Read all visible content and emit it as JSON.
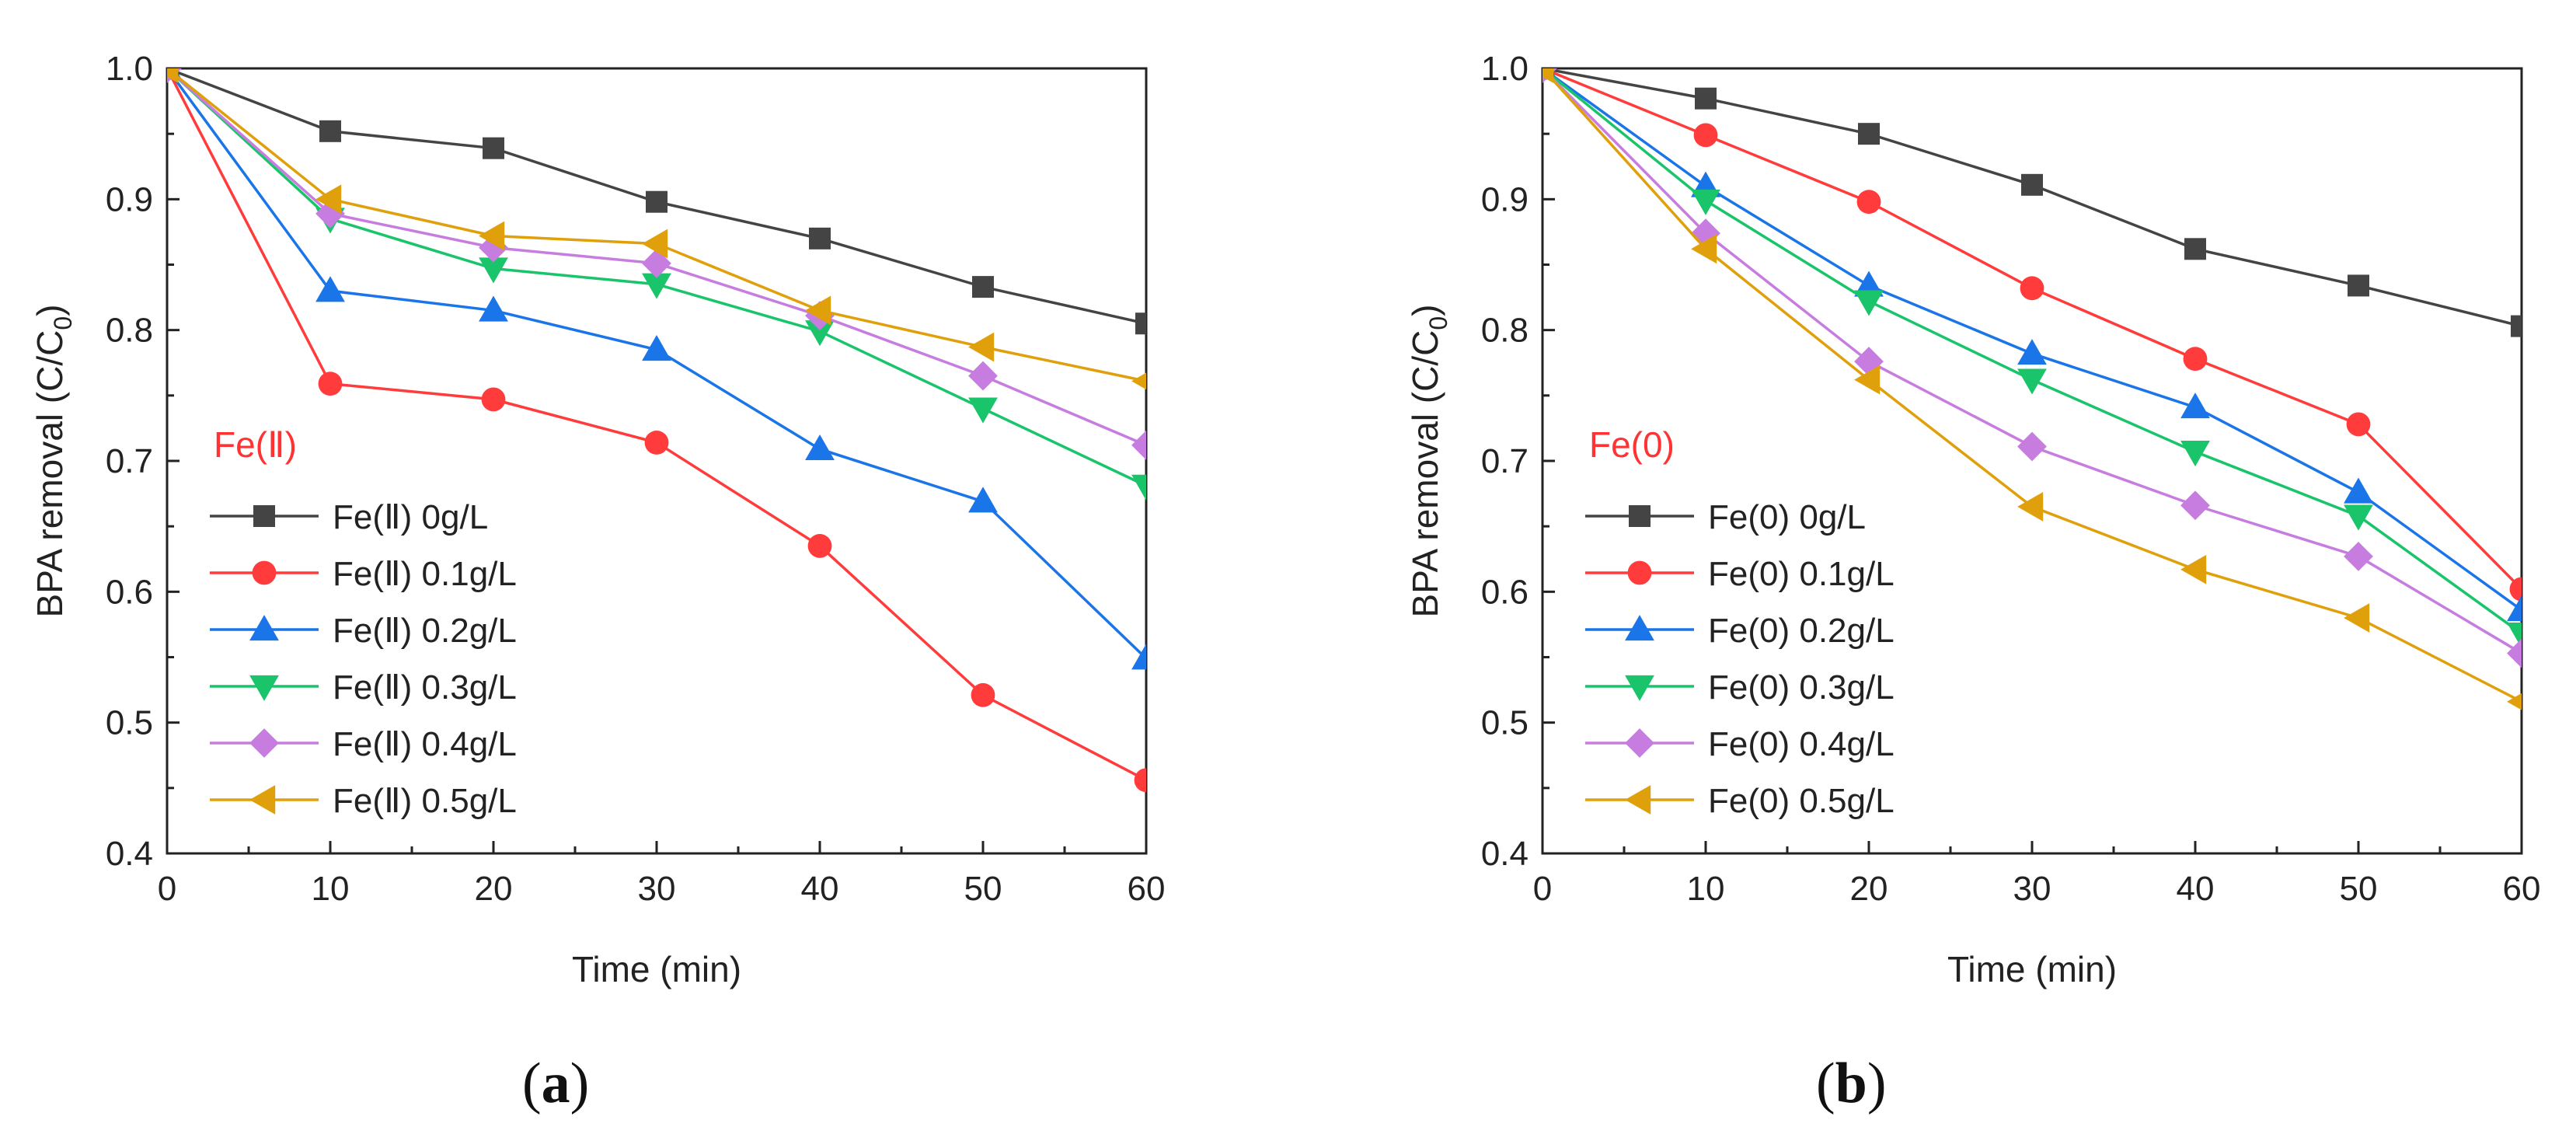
{
  "chart_data": [
    {
      "type": "line",
      "panel_label": "a",
      "annotation": "Fe(Ⅱ)",
      "annotation_color": "#ff3333",
      "xlabel": "Time (min)",
      "ylabel_text": "BPA removal (C/C",
      "ylabel_sub": "0",
      "ylabel_close": ")",
      "xlim": [
        0,
        60
      ],
      "ylim": [
        0.4,
        1.0
      ],
      "xticks": [
        "0",
        "10",
        "20",
        "30",
        "40",
        "50",
        "60"
      ],
      "yticks": [
        "0.4",
        "0.5",
        "0.6",
        "0.7",
        "0.8",
        "0.9",
        "1.0"
      ],
      "grid": false,
      "legend_position": "bottom-left",
      "x": [
        0,
        10,
        20,
        30,
        40,
        50,
        60
      ],
      "series": [
        {
          "name": "Fe(Ⅱ) 0g/L",
          "color": "#444444",
          "marker": "square",
          "values": [
            1.0,
            0.952,
            0.939,
            0.898,
            0.87,
            0.833,
            0.805
          ]
        },
        {
          "name": "Fe(Ⅱ) 0.1g/L",
          "color": "#ff3b3b",
          "marker": "circle",
          "values": [
            1.0,
            0.759,
            0.747,
            0.714,
            0.635,
            0.521,
            0.456
          ]
        },
        {
          "name": "Fe(Ⅱ) 0.2g/L",
          "color": "#1a75e8",
          "marker": "triangle-up",
          "values": [
            1.0,
            0.83,
            0.815,
            0.785,
            0.709,
            0.669,
            0.549
          ]
        },
        {
          "name": "Fe(Ⅱ) 0.3g/L",
          "color": "#19c46a",
          "marker": "triangle-down",
          "values": [
            1.0,
            0.885,
            0.847,
            0.835,
            0.799,
            0.74,
            0.681
          ]
        },
        {
          "name": "Fe(Ⅱ) 0.4g/L",
          "color": "#c77ddf",
          "marker": "diamond",
          "values": [
            1.0,
            0.889,
            0.863,
            0.851,
            0.811,
            0.765,
            0.712
          ]
        },
        {
          "name": "Fe(Ⅱ) 0.5g/L",
          "color": "#e0a00c",
          "marker": "triangle-left",
          "values": [
            1.0,
            0.9,
            0.872,
            0.866,
            0.815,
            0.787,
            0.761
          ]
        }
      ]
    },
    {
      "type": "line",
      "panel_label": "b",
      "annotation": "Fe(0)",
      "annotation_color": "#ff3333",
      "xlabel": "Time (min)",
      "ylabel_text": "BPA removal (C/C",
      "ylabel_sub": "0",
      "ylabel_close": ")",
      "xlim": [
        0,
        60
      ],
      "ylim": [
        0.4,
        1.0
      ],
      "xticks": [
        "0",
        "10",
        "20",
        "30",
        "40",
        "50",
        "60"
      ],
      "yticks": [
        "0.4",
        "0.5",
        "0.6",
        "0.7",
        "0.8",
        "0.9",
        "1.0"
      ],
      "grid": false,
      "legend_position": "bottom-left",
      "x": [
        0,
        10,
        20,
        30,
        40,
        50,
        60
      ],
      "series": [
        {
          "name": "Fe(0) 0g/L",
          "color": "#444444",
          "marker": "square",
          "values": [
            1.0,
            0.977,
            0.95,
            0.911,
            0.862,
            0.834,
            0.803
          ]
        },
        {
          "name": "Fe(0) 0.1g/L",
          "color": "#ff3b3b",
          "marker": "circle",
          "values": [
            1.0,
            0.949,
            0.898,
            0.832,
            0.778,
            0.728,
            0.602
          ]
        },
        {
          "name": "Fe(0) 0.2g/L",
          "color": "#1a75e8",
          "marker": "triangle-up",
          "values": [
            1.0,
            0.91,
            0.834,
            0.782,
            0.741,
            0.676,
            0.586
          ]
        },
        {
          "name": "Fe(0) 0.3g/L",
          "color": "#19c46a",
          "marker": "triangle-down",
          "values": [
            1.0,
            0.899,
            0.822,
            0.762,
            0.707,
            0.658,
            0.568
          ]
        },
        {
          "name": "Fe(0) 0.4g/L",
          "color": "#c77ddf",
          "marker": "diamond",
          "values": [
            1.0,
            0.874,
            0.776,
            0.711,
            0.666,
            0.627,
            0.553
          ]
        },
        {
          "name": "Fe(0) 0.5g/L",
          "color": "#e0a00c",
          "marker": "triangle-left",
          "values": [
            1.0,
            0.862,
            0.762,
            0.665,
            0.617,
            0.58,
            0.516
          ]
        }
      ]
    }
  ],
  "panels": {
    "a_label_open": "(",
    "a_label_letter": "a",
    "a_label_close": ")",
    "b_label_open": "(",
    "b_label_letter": "b",
    "b_label_close": ")"
  }
}
